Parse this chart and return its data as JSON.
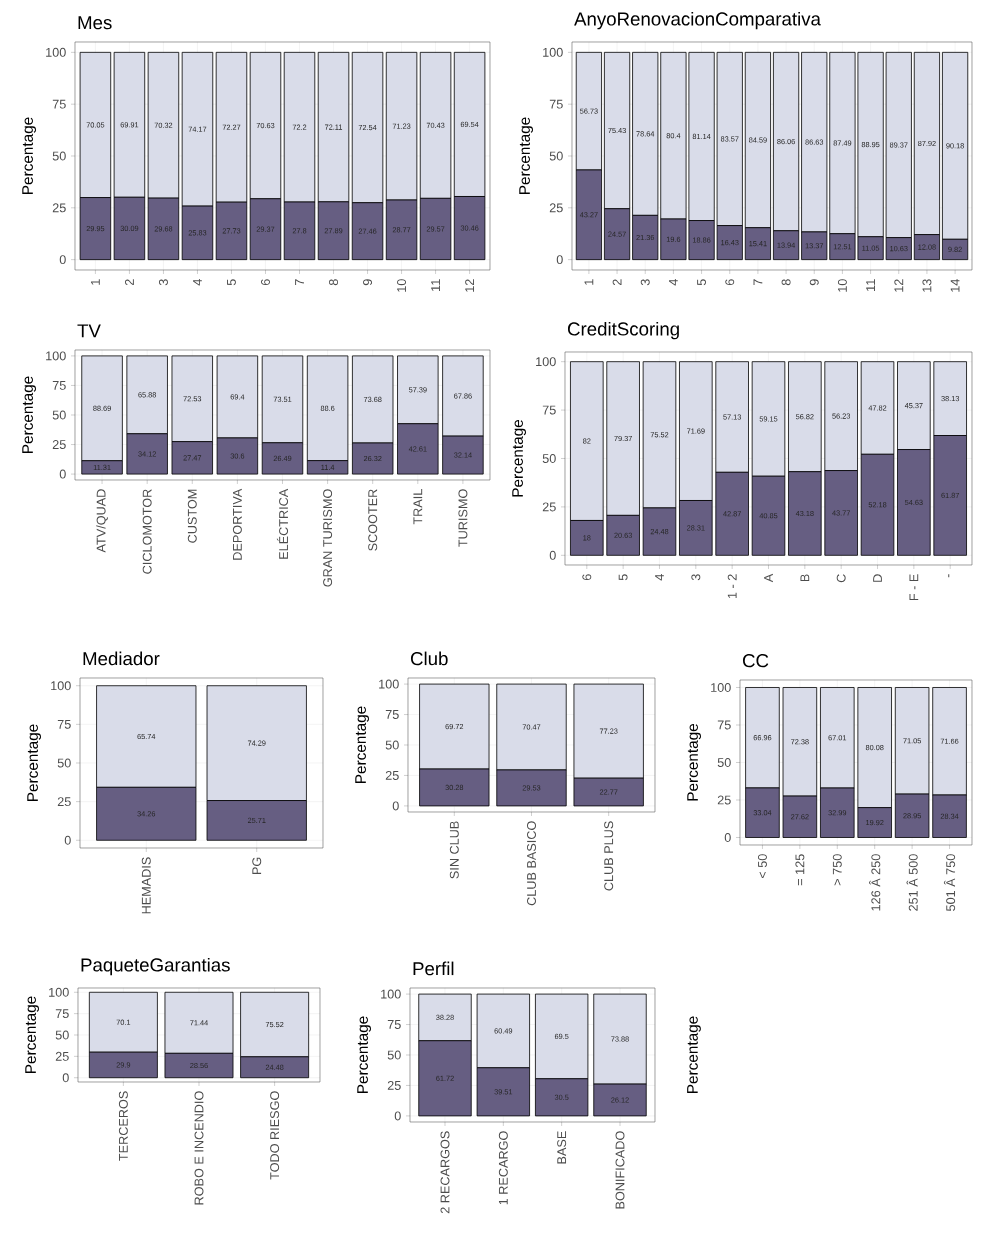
{
  "chart_data": [
    {
      "type": "bar",
      "title": "Mes",
      "ylabel": "Percentage",
      "stacked": true,
      "data_labels": true,
      "grid": true,
      "ylim": [
        -5,
        105
      ],
      "yticks": [
        0,
        25,
        50,
        75,
        100
      ],
      "categories": [
        "1",
        "2",
        "3",
        "4",
        "5",
        "6",
        "7",
        "8",
        "9",
        "10",
        "11",
        "12"
      ],
      "series": [
        {
          "color": "#665e82",
          "values": [
            29.95,
            30.09,
            29.68,
            25.83,
            27.73,
            29.37,
            27.8,
            27.89,
            27.46,
            28.77,
            29.57,
            30.46
          ]
        },
        {
          "color": "#d9dce9",
          "values": [
            70.05,
            69.91,
            70.32,
            74.17,
            72.27,
            70.63,
            72.2,
            72.11,
            72.54,
            71.23,
            70.43,
            69.54
          ]
        }
      ]
    },
    {
      "type": "bar",
      "title": "AnyoRenovacionComparativa",
      "ylabel": "Percentage",
      "stacked": true,
      "data_labels": true,
      "grid": true,
      "ylim": [
        -5,
        105
      ],
      "yticks": [
        0,
        25,
        50,
        75,
        100
      ],
      "categories": [
        "1",
        "2",
        "3",
        "4",
        "5",
        "6",
        "7",
        "8",
        "9",
        "10",
        "11",
        "12",
        "13",
        "14"
      ],
      "series": [
        {
          "color": "#665e82",
          "values": [
            43.27,
            24.57,
            21.36,
            19.6,
            18.86,
            16.43,
            15.41,
            13.94,
            13.37,
            12.51,
            11.05,
            10.63,
            12.08,
            9.82
          ]
        },
        {
          "color": "#d9dce9",
          "values": [
            56.73,
            75.43,
            78.64,
            80.4,
            81.14,
            83.57,
            84.59,
            86.06,
            86.63,
            87.49,
            88.95,
            89.37,
            87.92,
            90.18
          ]
        }
      ]
    },
    {
      "type": "bar",
      "title": "TV",
      "ylabel": "Percentage",
      "stacked": true,
      "data_labels": true,
      "grid": true,
      "ylim": [
        -5,
        105
      ],
      "yticks": [
        0,
        25,
        50,
        75,
        100
      ],
      "categories": [
        "ATV/QUAD",
        "CICLOMOTOR",
        "CUSTOM",
        "DEPORTIVA",
        "ELÉCTRICA",
        "GRAN TURISMO",
        "SCOOTER",
        "TRAIL",
        "TURISMO"
      ],
      "series": [
        {
          "color": "#665e82",
          "values": [
            11.31,
            34.12,
            27.47,
            30.6,
            26.49,
            11.4,
            26.32,
            42.61,
            32.14
          ]
        },
        {
          "color": "#d9dce9",
          "values": [
            88.69,
            65.88,
            72.53,
            69.4,
            73.51,
            88.6,
            73.68,
            57.39,
            67.86
          ]
        }
      ]
    },
    {
      "type": "bar",
      "title": "CreditScoring",
      "ylabel": "Percentage",
      "stacked": true,
      "data_labels": true,
      "grid": true,
      "ylim": [
        -5,
        105
      ],
      "yticks": [
        0,
        25,
        50,
        75,
        100
      ],
      "categories": [
        "6",
        "5",
        "4",
        "3",
        "1 - 2",
        "A",
        "B",
        "C",
        "D",
        "F - E",
        "-"
      ],
      "series": [
        {
          "color": "#665e82",
          "values": [
            18,
            20.63,
            24.48,
            28.31,
            42.87,
            40.85,
            43.18,
            43.77,
            52.18,
            54.63,
            61.87
          ]
        },
        {
          "color": "#d9dce9",
          "values": [
            82,
            79.37,
            75.52,
            71.69,
            57.13,
            59.15,
            56.82,
            56.23,
            47.82,
            45.37,
            38.13
          ]
        }
      ]
    },
    {
      "type": "bar",
      "title": "Mediador",
      "ylabel": "Percentage",
      "stacked": true,
      "data_labels": true,
      "grid": true,
      "ylim": [
        -5,
        105
      ],
      "yticks": [
        0,
        25,
        50,
        75,
        100
      ],
      "categories": [
        "HEMADIS",
        "PG"
      ],
      "series": [
        {
          "color": "#665e82",
          "values": [
            34.26,
            25.71
          ]
        },
        {
          "color": "#d9dce9",
          "values": [
            65.74,
            74.29
          ]
        }
      ]
    },
    {
      "type": "bar",
      "title": "Club",
      "ylabel": "Percentage",
      "stacked": true,
      "data_labels": true,
      "grid": true,
      "ylim": [
        -5,
        105
      ],
      "yticks": [
        0,
        25,
        50,
        75,
        100
      ],
      "categories": [
        "SIN CLUB",
        "CLUB BASICO",
        "CLUB PLUS"
      ],
      "series": [
        {
          "color": "#665e82",
          "values": [
            30.28,
            29.53,
            22.77
          ]
        },
        {
          "color": "#d9dce9",
          "values": [
            69.72,
            70.47,
            77.23
          ]
        }
      ]
    },
    {
      "type": "bar",
      "title": "CC",
      "ylabel": "Percentage",
      "stacked": true,
      "data_labels": true,
      "grid": true,
      "ylim": [
        -5,
        105
      ],
      "yticks": [
        0,
        25,
        50,
        75,
        100
      ],
      "categories": [
        "< 50",
        "= 125",
        "> 750",
        "126 Â 250",
        "251 Â 500",
        "501 Â 750"
      ],
      "series": [
        {
          "color": "#665e82",
          "values": [
            33.04,
            27.62,
            32.99,
            19.92,
            28.95,
            28.34
          ]
        },
        {
          "color": "#d9dce9",
          "values": [
            66.96,
            72.38,
            67.01,
            80.08,
            71.05,
            71.66
          ]
        }
      ]
    },
    {
      "type": "bar",
      "title": "PaqueteGarantias",
      "ylabel": "Percentage",
      "stacked": true,
      "data_labels": true,
      "grid": true,
      "ylim": [
        -5,
        105
      ],
      "yticks": [
        0,
        25,
        50,
        75,
        100
      ],
      "categories": [
        "TERCEROS",
        "ROBO E INCENDIO",
        "TODO RIESGO"
      ],
      "series": [
        {
          "color": "#665e82",
          "values": [
            29.9,
            28.56,
            24.48
          ]
        },
        {
          "color": "#d9dce9",
          "values": [
            70.1,
            71.44,
            75.52
          ]
        }
      ]
    },
    {
      "type": "bar",
      "title": "Perfil",
      "ylabel": "Percentage",
      "stacked": true,
      "data_labels": true,
      "grid": true,
      "ylim": [
        -5,
        105
      ],
      "yticks": [
        0,
        25,
        50,
        75,
        100
      ],
      "categories": [
        "2 RECARGOS",
        "1 RECARGO",
        "BASE",
        "BONIFICADO"
      ],
      "series": [
        {
          "color": "#665e82",
          "values": [
            61.72,
            39.51,
            30.5,
            26.12
          ]
        },
        {
          "color": "#d9dce9",
          "values": [
            38.28,
            60.49,
            69.5,
            73.88
          ]
        }
      ]
    },
    {
      "type": "other",
      "ylabel": "Percentage"
    }
  ]
}
